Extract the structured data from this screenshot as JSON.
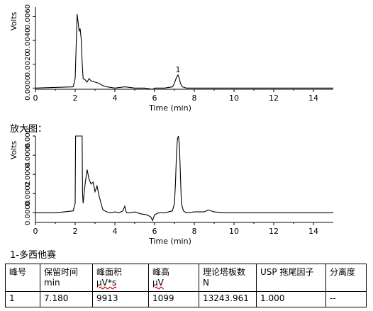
{
  "chart_data": [
    {
      "type": "line",
      "xlabel": "Time (min)",
      "ylabel": "Volts",
      "xlim": [
        0,
        15
      ],
      "ylim": [
        -0.0001,
        0.0068
      ],
      "xticks": [
        "0",
        "2",
        "4",
        "6",
        "8",
        "10",
        "12",
        "14"
      ],
      "yticks": [
        "0.0000",
        "0.0020",
        "0.0040",
        "0.0060"
      ],
      "x": [
        0,
        1.9,
        2.0,
        2.05,
        2.1,
        2.15,
        2.2,
        2.25,
        2.3,
        2.35,
        2.4,
        2.5,
        2.6,
        2.7,
        2.8,
        3.0,
        3.2,
        3.4,
        3.6,
        4.0,
        4.5,
        5.0,
        5.5,
        5.9,
        6.0,
        6.2,
        6.5,
        6.9,
        7.0,
        7.1,
        7.18,
        7.25,
        7.3,
        7.4,
        7.6,
        8.0,
        9.0,
        10.0,
        11.0,
        12.0,
        13.0,
        14.0,
        15.0
      ],
      "y": [
        0.0,
        0.0001,
        0.0008,
        0.0035,
        0.0062,
        0.0055,
        0.0048,
        0.005,
        0.0042,
        0.0022,
        0.0008,
        0.0007,
        0.0005,
        0.0008,
        0.0006,
        0.0005,
        0.0004,
        0.0002,
        0.0001,
        0.0,
        0.0001,
        0.0,
        0.0,
        -0.0001,
        0.0,
        0.0,
        0.0,
        0.0001,
        0.0004,
        0.0009,
        0.0011,
        0.0008,
        0.0004,
        0.0001,
        0.0,
        0.0,
        0.0,
        0.0,
        0.0,
        0.0,
        0.0,
        0.0,
        0.0
      ],
      "annotations": [
        {
          "x": 7.18,
          "label": "1"
        }
      ]
    },
    {
      "type": "line",
      "xlabel": "Time (min)",
      "ylabel": "Volts",
      "xlim": [
        0,
        15
      ],
      "ylim": [
        -0.0001,
        0.0008
      ],
      "xticks": [
        "0",
        "2",
        "4",
        "6",
        "8",
        "10",
        "12",
        "14"
      ],
      "yticks": [
        "0.0000",
        "0.0002",
        "0.0004",
        "0.0006",
        "0.0008"
      ],
      "x": [
        0,
        1.0,
        1.9,
        2.0,
        2.02,
        2.05,
        2.35,
        2.37,
        2.4,
        2.5,
        2.6,
        2.65,
        2.7,
        2.8,
        2.9,
        3.0,
        3.1,
        3.2,
        3.3,
        3.4,
        3.6,
        3.8,
        4.0,
        4.2,
        4.4,
        4.5,
        4.55,
        4.6,
        4.8,
        5.0,
        5.3,
        5.6,
        5.8,
        5.9,
        5.95,
        6.0,
        6.2,
        6.5,
        6.9,
        7.0,
        7.05,
        7.1,
        7.15,
        7.2,
        7.25,
        7.3,
        7.35,
        7.45,
        7.6,
        8.0,
        8.5,
        8.7,
        9.0,
        9.5,
        10.0,
        11.0,
        12.0,
        13.0,
        14.0,
        15.0
      ],
      "y": [
        0.0,
        0.0,
        2e-05,
        0.0001,
        0.0008,
        0.0008,
        0.0008,
        0.0002,
        0.0001,
        0.0003,
        0.00045,
        0.0004,
        0.00035,
        0.0003,
        0.00032,
        0.00022,
        0.00028,
        0.00018,
        0.0001,
        3e-05,
        1e-05,
        0.0,
        1e-05,
        0.0,
        2e-05,
        7e-05,
        2e-05,
        0.0,
        0.0,
        1e-05,
        -1e-05,
        -2e-05,
        -4e-05,
        -8e-05,
        -5e-05,
        -2e-05,
        0.0,
        0.0,
        2e-05,
        0.0001,
        0.0003,
        0.0006,
        0.00077,
        0.0008,
        0.0007,
        0.0004,
        0.0001,
        2e-05,
        0.0,
        1e-05,
        1e-05,
        3e-05,
        1e-05,
        0.0,
        0.0,
        0.0,
        0.0,
        0.0,
        0.0,
        0.0
      ]
    }
  ],
  "zoom_label": "放大图：",
  "compound_label": "1-多西他赛",
  "table": {
    "headers": [
      {
        "line1": "峰号",
        "line2": ""
      },
      {
        "line1": "保留时间",
        "line2": "min"
      },
      {
        "line1": "峰面积",
        "line2": "μV*s"
      },
      {
        "line1": "峰高",
        "line2": "μV"
      },
      {
        "line1": "理论塔板数",
        "line2": "N"
      },
      {
        "line1": "USP 拖尾因子",
        "line2": ""
      },
      {
        "line1": "分离度",
        "line2": ""
      }
    ],
    "rows": [
      [
        "1",
        "7.180",
        "9913",
        "1099",
        "13243.961",
        "1.000",
        "--"
      ]
    ]
  },
  "colors": {
    "trace": "#000000",
    "axis": "#000000",
    "unit_underline": "#d00000"
  }
}
